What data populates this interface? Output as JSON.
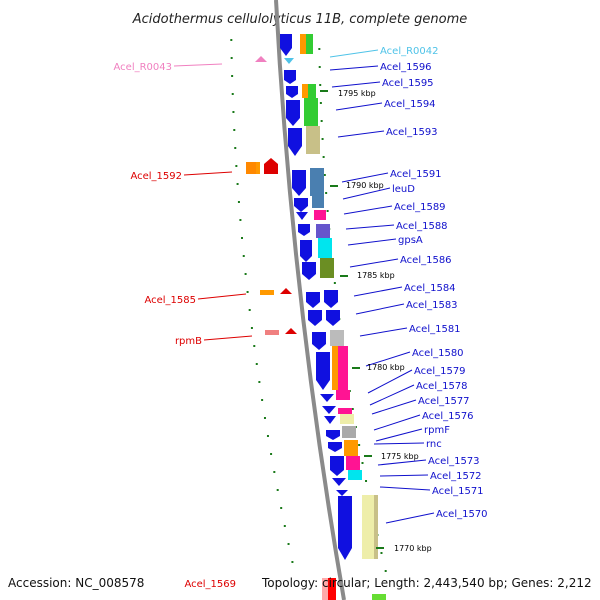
{
  "title": "Acidothermus cellulolyticus 11B, complete genome",
  "footer": {
    "accession": "Accession: NC_008578",
    "topology": "Topology: circular; Length: 2,443,540 bp; Genes: 2,212"
  },
  "colors": {
    "forward_gene": "#1010e0",
    "rna_label": "#4fc3e8",
    "trna_label": "#f080c0",
    "reverse_label": "#dd0000",
    "backbone": "#888888",
    "tick": "#1a7a1a"
  },
  "scale_labels": [
    "1795 kbp",
    "1790 kbp",
    "1785 kbp",
    "1780 kbp",
    "1775 kbp",
    "1770 kbp"
  ],
  "forward_labels": [
    "Acel_R0042",
    "Acel_1596",
    "Acel_1595",
    "Acel_1594",
    "Acel_1593",
    "Acel_1591",
    "leuD",
    "Acel_1589",
    "Acel_1588",
    "gpsA",
    "Acel_1586",
    "Acel_1584",
    "Acel_1583",
    "Acel_1581",
    "Acel_1580",
    "Acel_1579",
    "Acel_1578",
    "Acel_1577",
    "Acel_1576",
    "rpmF",
    "rnc",
    "Acel_1573",
    "Acel_1572",
    "Acel_1571",
    "Acel_1570"
  ],
  "reverse_labels": [
    "Acel_R0043",
    "Acel_1592",
    "Acel_1585",
    "rpmB",
    "Acel_1569"
  ]
}
